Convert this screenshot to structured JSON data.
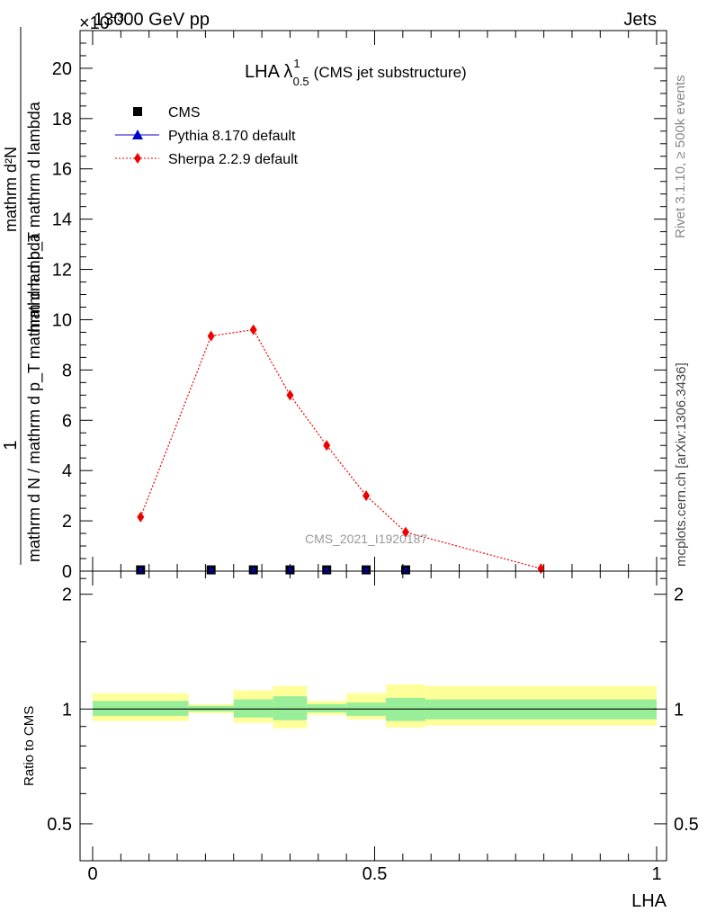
{
  "header": {
    "energy_label": "13000 GeV pp",
    "category_label": "Jets",
    "exponent_label": "×10",
    "exponent_power": "−3",
    "side_label_top": "Rivet 3.1.10, ≥ 500k events",
    "side_label_bottom": "mcplots.cern.ch [arXiv:1306.3436]",
    "watermark": "CMS_2021_I1920187"
  },
  "chart_data": [
    {
      "type": "scatter",
      "title_main": "LHA λ",
      "title_sup": "1",
      "title_sub": "0.5",
      "title_suffix": "(CMS jet substructure)",
      "ylabel_numerator": "1",
      "ylabel_denominator": "mathrm d N / mathrm d p_T mathrm d lambda",
      "ylabel_top_line1": "mathrm d²N",
      "ylabel_top_line2": "mathrm d p_T mathrm d lambda",
      "xlim": [
        0,
        1
      ],
      "ylim": [
        0,
        21.5
      ],
      "yticks": [
        "0",
        "2",
        "4",
        "6",
        "8",
        "10",
        "12",
        "14",
        "16",
        "18",
        "20"
      ],
      "xticks": [
        "0",
        "0.5",
        "1"
      ],
      "legend_position": "top-left",
      "legend": [
        {
          "name": "CMS",
          "color": "#000000",
          "marker": "square"
        },
        {
          "name": "Pythia 8.170 default",
          "color": "#0000cc",
          "marker": "triangle"
        },
        {
          "name": "Sherpa 2.2.9 default",
          "color": "#ee0000",
          "marker": "diamond"
        }
      ],
      "series": [
        {
          "name": "CMS",
          "x": [
            0.085,
            0.21,
            0.285,
            0.35,
            0.415,
            0.485,
            0.555
          ],
          "values": [
            0.05,
            0.05,
            0.05,
            0.05,
            0.05,
            0.05,
            0.05
          ]
        },
        {
          "name": "Sherpa 2.2.9 default",
          "x": [
            0.085,
            0.21,
            0.285,
            0.35,
            0.415,
            0.485,
            0.555,
            0.795
          ],
          "values": [
            2.15,
            9.35,
            9.6,
            7.0,
            5.0,
            3.0,
            1.55,
            0.1
          ]
        }
      ]
    },
    {
      "type": "area",
      "ylabel": "Ratio to CMS",
      "xlabel": "LHA",
      "xlim": [
        0,
        1
      ],
      "ylim": [
        0.4,
        2.3
      ],
      "log_scale": true,
      "yticks": [
        "0.5",
        "1",
        "2"
      ],
      "xticks": [
        "0",
        "0.5",
        "1"
      ],
      "band_colors": {
        "inner": "#99ee99",
        "outer": "#ffff99"
      },
      "bins": [
        {
          "x0": 0.0,
          "x1": 0.17,
          "inner": [
            0.96,
            1.05
          ],
          "outer": [
            0.93,
            1.1
          ]
        },
        {
          "x0": 0.17,
          "x1": 0.25,
          "inner": [
            0.985,
            1.02
          ],
          "outer": [
            0.975,
            1.03
          ]
        },
        {
          "x0": 0.25,
          "x1": 0.32,
          "inner": [
            0.95,
            1.06
          ],
          "outer": [
            0.92,
            1.12
          ]
        },
        {
          "x0": 0.32,
          "x1": 0.38,
          "inner": [
            0.935,
            1.08
          ],
          "outer": [
            0.89,
            1.15
          ]
        },
        {
          "x0": 0.38,
          "x1": 0.45,
          "inner": [
            0.98,
            1.03
          ],
          "outer": [
            0.965,
            1.05
          ]
        },
        {
          "x0": 0.45,
          "x1": 0.52,
          "inner": [
            0.96,
            1.04
          ],
          "outer": [
            0.94,
            1.1
          ]
        },
        {
          "x0": 0.52,
          "x1": 0.59,
          "inner": [
            0.93,
            1.07
          ],
          "outer": [
            0.895,
            1.16
          ]
        },
        {
          "x0": 0.59,
          "x1": 1.0,
          "inner": [
            0.94,
            1.06
          ],
          "outer": [
            0.905,
            1.15
          ]
        }
      ]
    }
  ]
}
